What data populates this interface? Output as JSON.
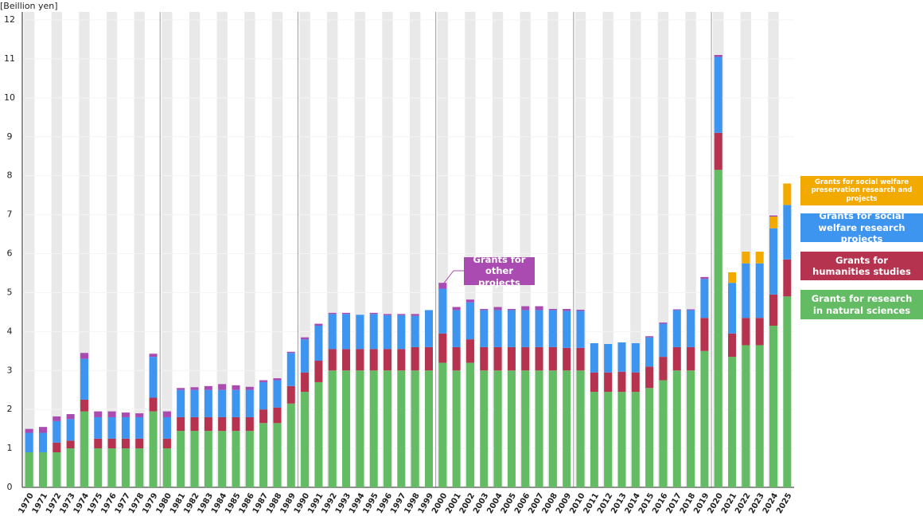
{
  "chart_data": {
    "type": "stacked-bar",
    "y_axis_label": "[Beillion yen]",
    "categories": [
      "1970",
      "1971",
      "1972",
      "1973",
      "1974",
      "1975",
      "1976",
      "1977",
      "1978",
      "1979",
      "1980",
      "1981",
      "1982",
      "1983",
      "1984",
      "1985",
      "1986",
      "1987",
      "1988",
      "1989",
      "1990",
      "1991",
      "1992",
      "1993",
      "1994",
      "1995",
      "1996",
      "1997",
      "1998",
      "1999",
      "2000",
      "2001",
      "2002",
      "2003",
      "2004",
      "2005",
      "2006",
      "2007",
      "2008",
      "2009",
      "2010",
      "2011",
      "2012",
      "2013",
      "2014",
      "2015",
      "2016",
      "2017",
      "2018",
      "2019",
      "2020",
      "2021",
      "2022",
      "2023",
      "2024",
      "2025"
    ],
    "series": [
      {
        "name": "Grants for research in natural sciences",
        "color": "#63bb63",
        "values": [
          0.9,
          0.9,
          0.9,
          1.0,
          1.95,
          1.0,
          1.0,
          1.0,
          1.0,
          1.95,
          1.0,
          1.45,
          1.45,
          1.45,
          1.45,
          1.45,
          1.45,
          1.65,
          1.65,
          2.15,
          2.45,
          2.7,
          3.0,
          3.0,
          3.0,
          3.0,
          3.0,
          3.0,
          3.0,
          3.0,
          3.2,
          3.0,
          3.2,
          3.0,
          3.0,
          3.0,
          3.0,
          3.0,
          3.0,
          3.0,
          3.0,
          2.45,
          2.45,
          2.45,
          2.45,
          2.55,
          2.75,
          3.0,
          3.0,
          3.5,
          8.15,
          3.35,
          3.65,
          3.65,
          4.15,
          4.9
        ]
      },
      {
        "name": "Grants for humanities studies",
        "color": "#b5334f",
        "values": [
          0,
          0,
          0.25,
          0.2,
          0.3,
          0.25,
          0.25,
          0.25,
          0.25,
          0.35,
          0.25,
          0.35,
          0.35,
          0.35,
          0.35,
          0.35,
          0.35,
          0.35,
          0.4,
          0.45,
          0.5,
          0.55,
          0.55,
          0.55,
          0.55,
          0.55,
          0.55,
          0.55,
          0.6,
          0.6,
          0.75,
          0.6,
          0.6,
          0.6,
          0.6,
          0.6,
          0.6,
          0.6,
          0.6,
          0.58,
          0.58,
          0.5,
          0.5,
          0.52,
          0.5,
          0.55,
          0.6,
          0.6,
          0.6,
          0.85,
          0.95,
          0.6,
          0.7,
          0.7,
          0.8,
          0.95
        ]
      },
      {
        "name": "Grants for social welfare research projects",
        "color": "#3d95f0",
        "values": [
          0.5,
          0.5,
          0.55,
          0.55,
          1.05,
          0.55,
          0.55,
          0.55,
          0.55,
          1.05,
          0.55,
          0.7,
          0.7,
          0.7,
          0.7,
          0.7,
          0.7,
          0.7,
          0.7,
          0.85,
          0.85,
          0.9,
          0.9,
          0.9,
          0.88,
          0.9,
          0.87,
          0.87,
          0.8,
          0.95,
          1.15,
          0.95,
          0.95,
          0.95,
          0.95,
          0.95,
          0.95,
          0.95,
          0.95,
          0.95,
          0.95,
          0.75,
          0.73,
          0.75,
          0.75,
          0.75,
          0.85,
          0.95,
          0.95,
          1.0,
          1.95,
          1.3,
          1.4,
          1.4,
          1.7,
          1.4
        ]
      },
      {
        "name": "Grants for social welfare preservation research and projects",
        "color": "#f2a900",
        "values": [
          null,
          null,
          null,
          null,
          null,
          null,
          null,
          null,
          null,
          null,
          null,
          null,
          null,
          null,
          null,
          null,
          null,
          null,
          null,
          null,
          null,
          null,
          null,
          null,
          null,
          null,
          null,
          null,
          null,
          null,
          null,
          null,
          null,
          null,
          null,
          null,
          null,
          null,
          null,
          null,
          null,
          null,
          null,
          null,
          null,
          null,
          null,
          null,
          null,
          null,
          null,
          0.27,
          0.3,
          0.3,
          0.3,
          0.55
        ]
      },
      {
        "name": "Grants for other projects",
        "color": "#a94bb0",
        "values": [
          0.1,
          0.15,
          0.12,
          0.13,
          0.15,
          0.15,
          0.15,
          0.12,
          0.1,
          0.08,
          0.15,
          0.05,
          0.07,
          0.1,
          0.15,
          0.12,
          0.08,
          0.05,
          0.05,
          0.03,
          0.05,
          0.05,
          0.03,
          0.03,
          0,
          0.03,
          0.03,
          0.03,
          0.05,
          0,
          0.15,
          0.08,
          0.07,
          0.03,
          0.08,
          0.03,
          0.1,
          0.1,
          0.03,
          0.05,
          0.03,
          0,
          0,
          0,
          0,
          0.03,
          0.03,
          0.02,
          0.02,
          0.05,
          0.05,
          0,
          0,
          0,
          0.03,
          0
        ]
      }
    ],
    "ylim": [
      0,
      12
    ],
    "yticks": [
      0,
      1,
      2,
      3,
      4,
      5,
      6,
      7,
      8,
      9,
      10,
      11,
      12
    ],
    "grid": true
  }
}
